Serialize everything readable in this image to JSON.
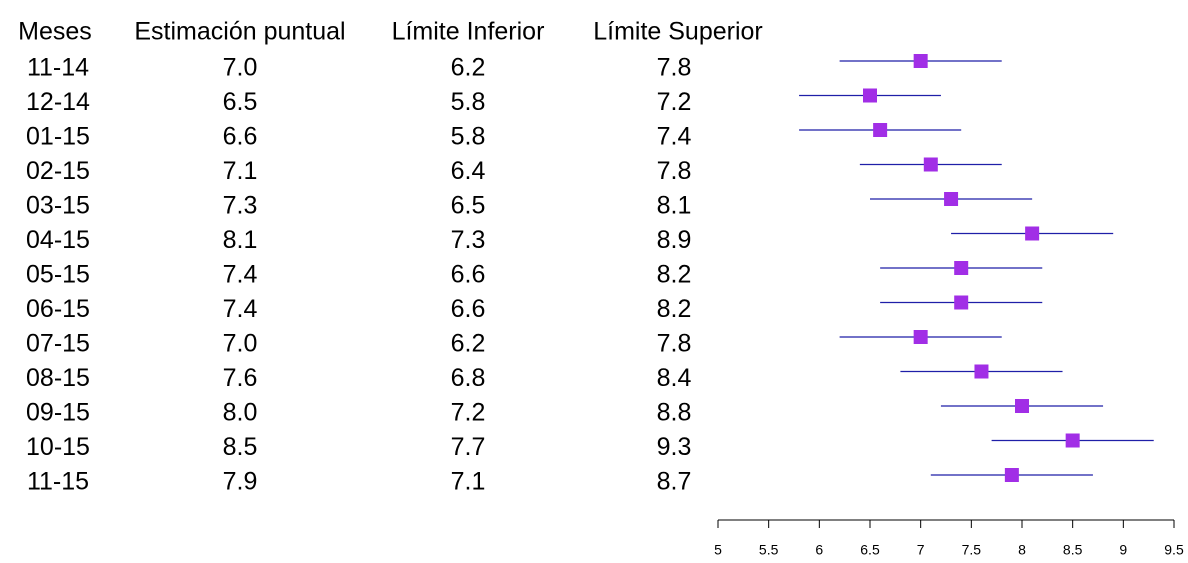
{
  "chart_data": {
    "type": "forest",
    "columns": [
      "Meses",
      "Estimación puntual",
      "Límite Inferior",
      "Límite Superior"
    ],
    "rows": [
      {
        "label": "11-14",
        "estimate": "7.0",
        "lower": "6.2",
        "upper": "7.8"
      },
      {
        "label": "12-14",
        "estimate": "6.5",
        "lower": "5.8",
        "upper": "7.2"
      },
      {
        "label": "01-15",
        "estimate": "6.6",
        "lower": "5.8",
        "upper": "7.4"
      },
      {
        "label": "02-15",
        "estimate": "7.1",
        "lower": "6.4",
        "upper": "7.8"
      },
      {
        "label": "03-15",
        "estimate": "7.3",
        "lower": "6.5",
        "upper": "8.1"
      },
      {
        "label": "04-15",
        "estimate": "8.1",
        "lower": "7.3",
        "upper": "8.9"
      },
      {
        "label": "05-15",
        "estimate": "7.4",
        "lower": "6.6",
        "upper": "8.2"
      },
      {
        "label": "06-15",
        "estimate": "7.4",
        "lower": "6.6",
        "upper": "8.2"
      },
      {
        "label": "07-15",
        "estimate": "7.0",
        "lower": "6.2",
        "upper": "7.8"
      },
      {
        "label": "08-15",
        "estimate": "7.6",
        "lower": "6.8",
        "upper": "8.4"
      },
      {
        "label": "09-15",
        "estimate": "8.0",
        "lower": "7.2",
        "upper": "8.8"
      },
      {
        "label": "10-15",
        "estimate": "8.5",
        "lower": "7.7",
        "upper": "9.3"
      },
      {
        "label": "11-15",
        "estimate": "7.9",
        "lower": "7.1",
        "upper": "8.7"
      }
    ],
    "x_ticks": [
      "5",
      "5.5",
      "6",
      "6.5",
      "7",
      "7.5",
      "8",
      "8.5",
      "9",
      "9.5"
    ],
    "xlim": [
      5,
      9.5
    ],
    "grid": false,
    "legend": "none",
    "colors": {
      "point": "#a12ee6",
      "ci_line": "#1f1fa8",
      "axis": "#000000",
      "text": "#000000"
    }
  }
}
